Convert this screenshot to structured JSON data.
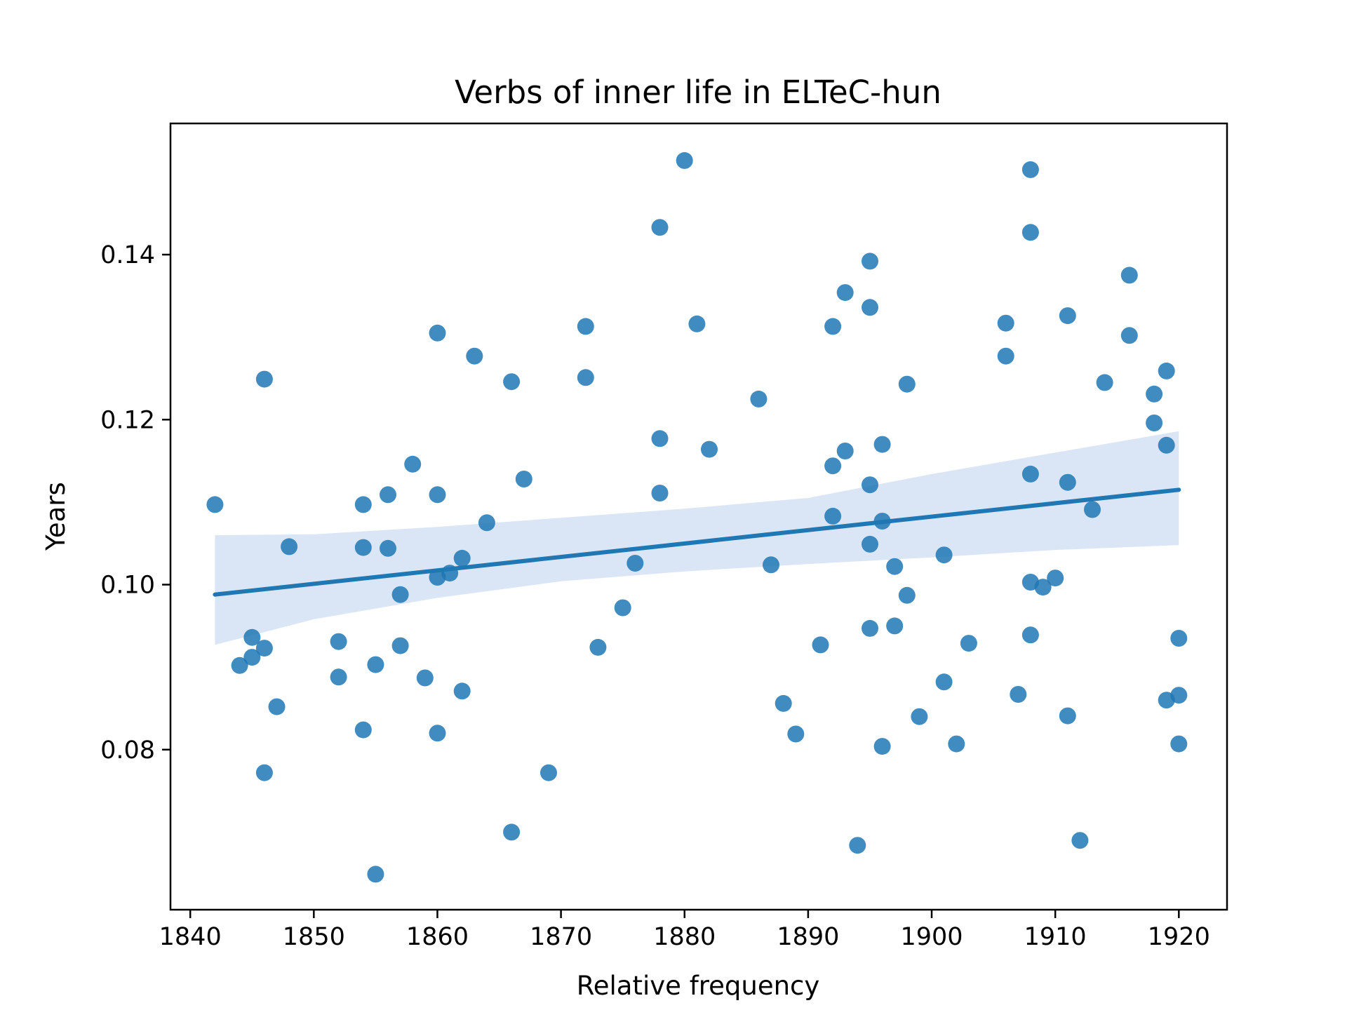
{
  "chart_data": {
    "type": "scatter",
    "title": "Verbs of inner life in ELTeC-hun",
    "xlabel": "Relative frequency",
    "ylabel": "Years",
    "xlim": [
      1838.4,
      1923.9
    ],
    "ylim": [
      0.0606,
      0.1559
    ],
    "xticks": [
      1840,
      1850,
      1860,
      1870,
      1880,
      1890,
      1900,
      1910,
      1920
    ],
    "yticks": [
      0.08,
      0.1,
      0.12,
      0.14
    ],
    "xtick_labels": [
      "1840",
      "1850",
      "1860",
      "1870",
      "1880",
      "1890",
      "1900",
      "1910",
      "1920"
    ],
    "ytick_labels": [
      "0.08",
      "0.10",
      "0.12",
      "0.14"
    ],
    "grid": false,
    "colors": {
      "points": "#1f77b4",
      "line": "#1f77b4",
      "band": "#aec7e8"
    },
    "points": [
      [
        1842,
        0.1097
      ],
      [
        1844,
        0.0902
      ],
      [
        1845,
        0.0936
      ],
      [
        1845,
        0.0912
      ],
      [
        1846,
        0.1249
      ],
      [
        1846,
        0.0923
      ],
      [
        1846,
        0.0772
      ],
      [
        1847,
        0.0852
      ],
      [
        1848,
        0.1046
      ],
      [
        1852,
        0.0931
      ],
      [
        1852,
        0.0888
      ],
      [
        1854,
        0.1097
      ],
      [
        1854,
        0.1045
      ],
      [
        1854,
        0.0824
      ],
      [
        1855,
        0.0903
      ],
      [
        1855,
        0.0649
      ],
      [
        1856,
        0.1109
      ],
      [
        1856,
        0.1044
      ],
      [
        1857,
        0.0988
      ],
      [
        1857,
        0.0926
      ],
      [
        1858,
        0.1146
      ],
      [
        1859,
        0.0887
      ],
      [
        1860,
        0.1305
      ],
      [
        1860,
        0.1109
      ],
      [
        1860,
        0.1009
      ],
      [
        1860,
        0.082
      ],
      [
        1861,
        0.1014
      ],
      [
        1862,
        0.1032
      ],
      [
        1862,
        0.0871
      ],
      [
        1863,
        0.1277
      ],
      [
        1864,
        0.1075
      ],
      [
        1866,
        0.1246
      ],
      [
        1866,
        0.07
      ],
      [
        1867,
        0.1128
      ],
      [
        1869,
        0.0772
      ],
      [
        1872,
        0.1313
      ],
      [
        1872,
        0.1251
      ],
      [
        1873,
        0.0924
      ],
      [
        1875,
        0.0972
      ],
      [
        1876,
        0.1026
      ],
      [
        1878,
        0.1433
      ],
      [
        1878,
        0.1177
      ],
      [
        1878,
        0.1111
      ],
      [
        1880,
        0.1514
      ],
      [
        1881,
        0.1316
      ],
      [
        1882,
        0.1164
      ],
      [
        1886,
        0.1225
      ],
      [
        1887,
        0.1024
      ],
      [
        1888,
        0.0856
      ],
      [
        1889,
        0.0819
      ],
      [
        1891,
        0.0927
      ],
      [
        1892,
        0.1313
      ],
      [
        1892,
        0.1144
      ],
      [
        1892,
        0.1083
      ],
      [
        1893,
        0.1354
      ],
      [
        1893,
        0.1162
      ],
      [
        1894,
        0.0684
      ],
      [
        1895,
        0.1392
      ],
      [
        1895,
        0.1336
      ],
      [
        1895,
        0.1121
      ],
      [
        1895,
        0.1049
      ],
      [
        1895,
        0.0947
      ],
      [
        1896,
        0.117
      ],
      [
        1896,
        0.1077
      ],
      [
        1896,
        0.0804
      ],
      [
        1897,
        0.1022
      ],
      [
        1897,
        0.095
      ],
      [
        1898,
        0.1243
      ],
      [
        1898,
        0.0987
      ],
      [
        1899,
        0.084
      ],
      [
        1901,
        0.1036
      ],
      [
        1901,
        0.0882
      ],
      [
        1902,
        0.0807
      ],
      [
        1903,
        0.0929
      ],
      [
        1906,
        0.1317
      ],
      [
        1906,
        0.1277
      ],
      [
        1907,
        0.0867
      ],
      [
        1908,
        0.1503
      ],
      [
        1908,
        0.1427
      ],
      [
        1908,
        0.1134
      ],
      [
        1908,
        0.1003
      ],
      [
        1908,
        0.0939
      ],
      [
        1909,
        0.0997
      ],
      [
        1910,
        0.1008
      ],
      [
        1911,
        0.1326
      ],
      [
        1911,
        0.1124
      ],
      [
        1911,
        0.0841
      ],
      [
        1912,
        0.069
      ],
      [
        1913,
        0.1091
      ],
      [
        1914,
        0.1245
      ],
      [
        1916,
        0.1375
      ],
      [
        1916,
        0.1302
      ],
      [
        1918,
        0.1231
      ],
      [
        1918,
        0.1196
      ],
      [
        1919,
        0.1259
      ],
      [
        1919,
        0.1169
      ],
      [
        1919,
        0.086
      ],
      [
        1920,
        0.0935
      ],
      [
        1920,
        0.0866
      ],
      [
        1920,
        0.0807
      ]
    ],
    "regression": {
      "x": [
        1842,
        1920
      ],
      "y": [
        0.0988,
        0.1115
      ],
      "ci_x": [
        1842,
        1850,
        1860,
        1870,
        1880,
        1890,
        1900,
        1910,
        1920
      ],
      "ci_lower": [
        0.0927,
        0.0958,
        0.0984,
        0.1004,
        0.1016,
        0.1025,
        0.1033,
        0.1042,
        0.1048
      ],
      "ci_upper": [
        0.106,
        0.1061,
        0.107,
        0.1081,
        0.1092,
        0.1105,
        0.1134,
        0.116,
        0.1186
      ]
    }
  }
}
